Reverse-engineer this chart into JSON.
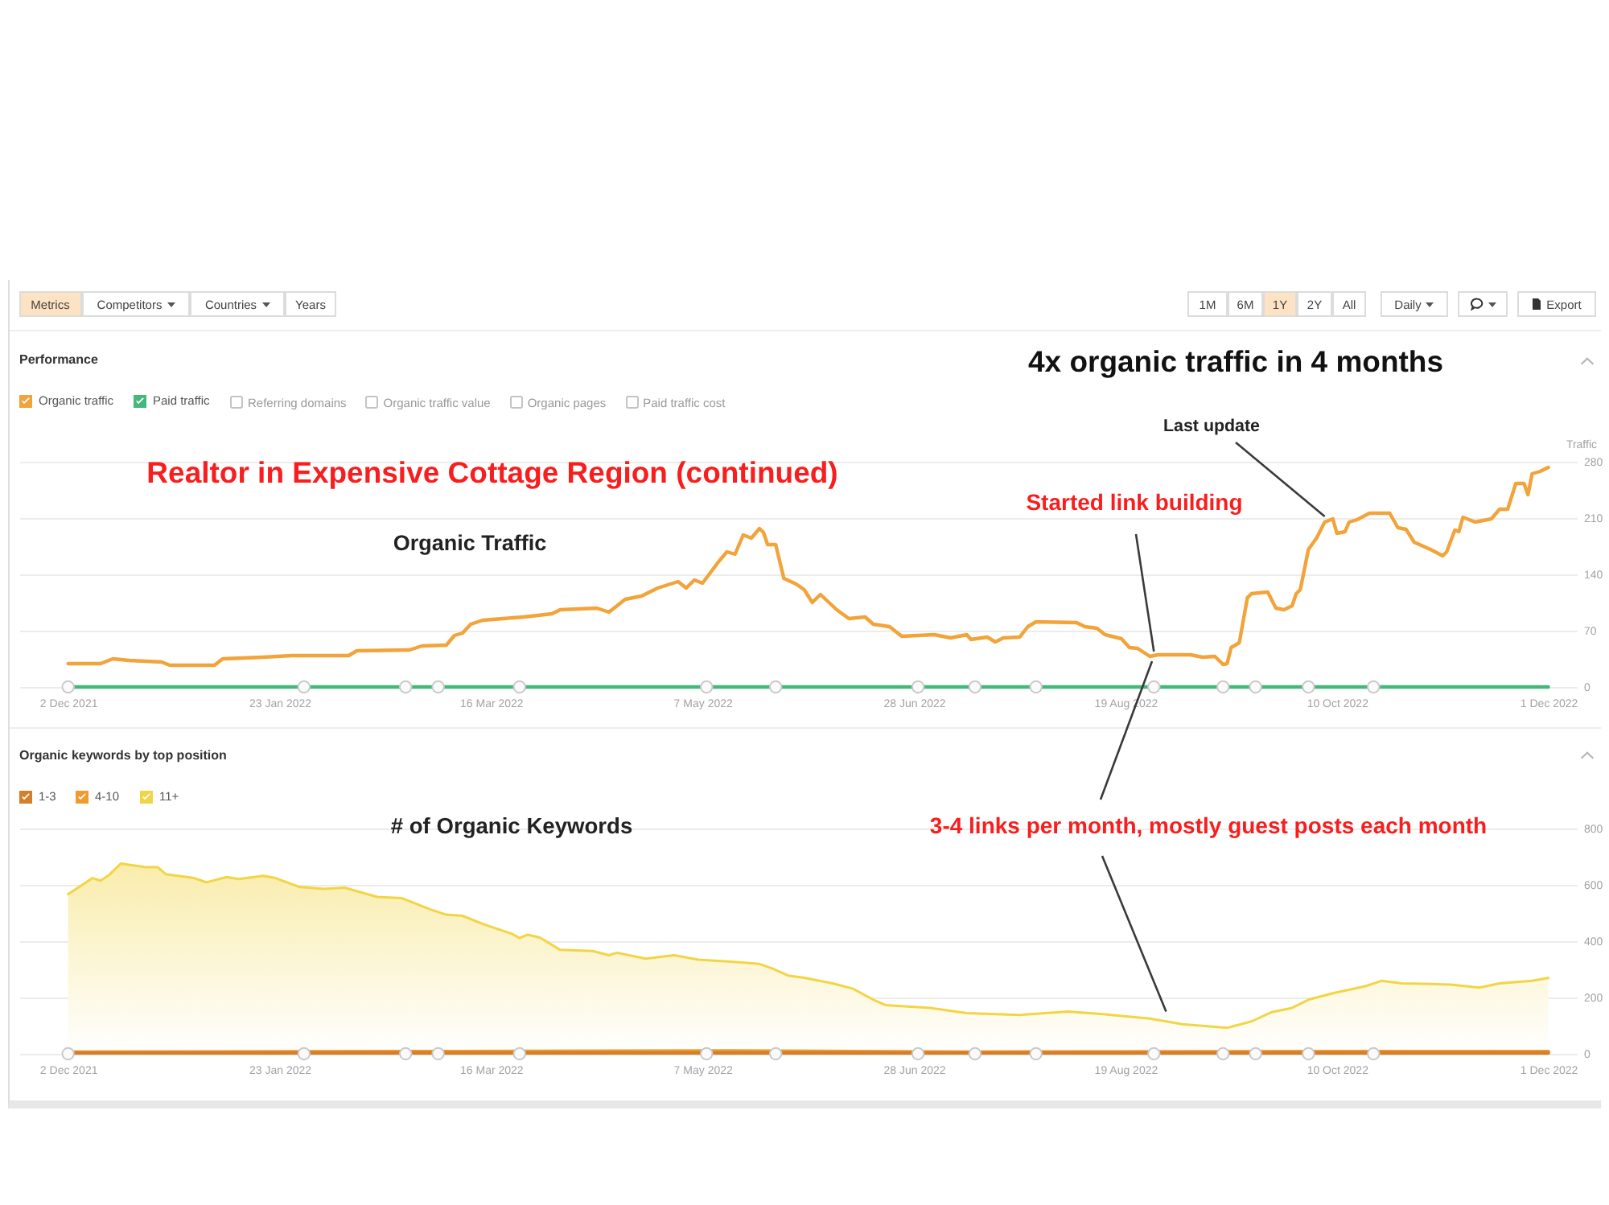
{
  "chart_data": [
    {
      "type": "other",
      "annotations": [
        "Metrics",
        "Competitors",
        "Countries",
        "Years",
        "1M",
        "6M",
        "1Y",
        "2Y",
        "All",
        "Daily",
        "Export"
      ]
    },
    {
      "type": "line",
      "title": "Performance",
      "ylabel": "Traffic",
      "series": [
        {
          "name": "Organic traffic",
          "color": "#f2a33a",
          "x": [
            "2021-12-02",
            "2021-12-10",
            "2021-12-13",
            "2021-12-17",
            "2021-12-25",
            "2021-12-27",
            "2022-01-07",
            "2022-01-09",
            "2022-01-19",
            "2022-01-26",
            "2022-02-09",
            "2022-02-11",
            "2022-02-24",
            "2022-02-27",
            "2022-03-05",
            "2022-03-07",
            "2022-03-09",
            "2022-03-11",
            "2022-03-14",
            "2022-03-19",
            "2022-03-24",
            "2022-03-31",
            "2022-04-02",
            "2022-04-11",
            "2022-04-14",
            "2022-04-18",
            "2022-04-22",
            "2022-04-26",
            "2022-05-01",
            "2022-05-03",
            "2022-05-05",
            "2022-05-07",
            "2022-05-11",
            "2022-05-13",
            "2022-05-15",
            "2022-05-17",
            "2022-05-19",
            "2022-05-21",
            "2022-05-22",
            "2022-05-23",
            "2022-05-25",
            "2022-05-27",
            "2022-05-30",
            "2022-06-01",
            "2022-06-03",
            "2022-06-05",
            "2022-06-09",
            "2022-06-12",
            "2022-06-16",
            "2022-06-18",
            "2022-06-22",
            "2022-06-25",
            "2022-07-03",
            "2022-07-07",
            "2022-07-11",
            "2022-07-12",
            "2022-07-16",
            "2022-07-18",
            "2022-07-20",
            "2022-07-24",
            "2022-07-26",
            "2022-07-28",
            "2022-08-07",
            "2022-08-09",
            "2022-08-12",
            "2022-08-14",
            "2022-08-18",
            "2022-08-20",
            "2022-08-22",
            "2022-08-25",
            "2022-08-27",
            "2022-09-04",
            "2022-09-07",
            "2022-09-10",
            "2022-09-12",
            "2022-09-13",
            "2022-09-14",
            "2022-09-16",
            "2022-09-18",
            "2022-09-19",
            "2022-09-23",
            "2022-09-25",
            "2022-09-27",
            "2022-09-29",
            "2022-09-30",
            "2022-10-01",
            "2022-10-03",
            "2022-10-05",
            "2022-10-07",
            "2022-10-09",
            "2022-10-10",
            "2022-10-12",
            "2022-10-13",
            "2022-10-15",
            "2022-10-18",
            "2022-10-23",
            "2022-10-25",
            "2022-10-27",
            "2022-10-29",
            "2022-11-02",
            "2022-11-05",
            "2022-11-06",
            "2022-11-08",
            "2022-11-09",
            "2022-11-10",
            "2022-11-13",
            "2022-11-17",
            "2022-11-19",
            "2022-11-21",
            "2022-11-23",
            "2022-11-25",
            "2022-11-26",
            "2022-11-27",
            "2022-11-29",
            "2022-12-01"
          ],
          "values": [
            29,
            29,
            35,
            33,
            31,
            27,
            27,
            35,
            37,
            39,
            39,
            45,
            46,
            51,
            52,
            64,
            67,
            78,
            83,
            85,
            87,
            91,
            96,
            98,
            93,
            109,
            113,
            123,
            131,
            123,
            133,
            129,
            156,
            168,
            165,
            189,
            185,
            197,
            192,
            177,
            177,
            135,
            128,
            121,
            105,
            115,
            96,
            85,
            87,
            78,
            75,
            63,
            65,
            61,
            65,
            59,
            62,
            56,
            61,
            62,
            75,
            81,
            80,
            75,
            73,
            65,
            60,
            49,
            48,
            38,
            40,
            40,
            37,
            38,
            28,
            29,
            49,
            55,
            111,
            116,
            118,
            98,
            96,
            101,
            116,
            121,
            171,
            185,
            205,
            209,
            191,
            193,
            205,
            208,
            216,
            216,
            198,
            196,
            180,
            171,
            163,
            168,
            195,
            193,
            211,
            205,
            209,
            221,
            221,
            253,
            253,
            239,
            265,
            268,
            273
          ]
        },
        {
          "name": "Paid traffic",
          "color": "#44b77b",
          "x": [
            "2021-12-02",
            "2022-12-01"
          ],
          "values": [
            0,
            0
          ]
        },
        {
          "type": "scatter",
          "color": "#fafafa",
          "x": [
            "2021-12-02",
            "2022-01-29",
            "2022-02-23",
            "2022-03-03",
            "2022-03-23",
            "2022-05-08",
            "2022-05-25",
            "2022-06-29",
            "2022-07-13",
            "2022-07-28",
            "2022-08-26",
            "2022-09-12",
            "2022-09-20",
            "2022-10-03",
            "2022-10-19"
          ],
          "values": [
            0,
            0,
            0,
            0,
            0,
            0,
            0,
            0,
            0,
            0,
            0,
            0,
            0,
            0,
            0
          ]
        }
      ],
      "xlim": [
        "2021-11-20",
        "2022-12-08"
      ],
      "xticks": [
        {
          "value": "2021-12-02",
          "label": "2 Dec 2021"
        },
        {
          "value": "2022-01-23",
          "label": "23 Jan 2022"
        },
        {
          "value": "2022-03-16",
          "label": "16 Mar 2022"
        },
        {
          "value": "2022-05-07",
          "label": "7 May 2022"
        },
        {
          "value": "2022-06-28",
          "label": "28 Jun 2022"
        },
        {
          "value": "2022-08-19",
          "label": "19 Aug 2022"
        },
        {
          "value": "2022-10-10",
          "label": "10 Oct 2022"
        },
        {
          "value": "2022-12-01",
          "label": "1 Dec 2022"
        }
      ],
      "ylim": [
        0,
        280
      ],
      "yticks": [
        0,
        70,
        140,
        210,
        280
      ],
      "grid": "y",
      "legend": "top left",
      "annotations": [
        "4x organic traffic in 4 months",
        "Realtor in Expensive Cottage Region (continued)",
        "Organic Traffic",
        {
          "text": "Last update",
          "x": "2022-10-07",
          "y": 212
        },
        {
          "text": "Started link building",
          "x": "2022-08-26",
          "y": 44
        },
        "Referring domains",
        "Organic traffic value",
        "Organic pages",
        "Paid traffic cost"
      ]
    },
    {
      "type": "area",
      "title": "Organic keywords by top position",
      "series": [
        {
          "name": "1-3",
          "type": "line",
          "color": "#d47f2a",
          "x": [
            "2021-12-02",
            "2022-12-01"
          ],
          "values": [
            3,
            3
          ]
        },
        {
          "name": "4-10",
          "type": "line",
          "color": "#f29a2e",
          "x": [
            "2021-12-02",
            "2022-03-09",
            "2022-05-14",
            "2022-07-11",
            "2022-10-17",
            "2022-12-01"
          ],
          "values": [
            6,
            8,
            10,
            6,
            8,
            8
          ]
        },
        {
          "name": "11+",
          "type": "area",
          "color": "#f2d544",
          "x": [
            "2021-12-02",
            "2021-12-04",
            "2021-12-08",
            "2021-12-10",
            "2021-12-12",
            "2021-12-15",
            "2021-12-21",
            "2021-12-24",
            "2021-12-26",
            "2022-01-02",
            "2022-01-05",
            "2022-01-10",
            "2022-01-13",
            "2022-01-19",
            "2022-01-22",
            "2022-01-28",
            "2022-02-03",
            "2022-02-08",
            "2022-02-16",
            "2022-02-22",
            "2022-03-01",
            "2022-03-05",
            "2022-03-09",
            "2022-03-14",
            "2022-03-21",
            "2022-03-23",
            "2022-03-25",
            "2022-03-28",
            "2022-04-02",
            "2022-04-10",
            "2022-04-14",
            "2022-04-16",
            "2022-04-23",
            "2022-04-30",
            "2022-05-06",
            "2022-05-14",
            "2022-05-21",
            "2022-05-24",
            "2022-05-28",
            "2022-06-01",
            "2022-06-08",
            "2022-06-13",
            "2022-06-18",
            "2022-06-21",
            "2022-07-02",
            "2022-07-11",
            "2022-07-24",
            "2022-08-05",
            "2022-08-14",
            "2022-08-25",
            "2022-09-02",
            "2022-09-13",
            "2022-09-19",
            "2022-09-24",
            "2022-09-29",
            "2022-10-03",
            "2022-10-09",
            "2022-10-17",
            "2022-10-21",
            "2022-10-26",
            "2022-11-07",
            "2022-11-14",
            "2022-11-19",
            "2022-11-27",
            "2022-12-01"
          ],
          "values": [
            567,
            586,
            624,
            615,
            634,
            676,
            663,
            663,
            638,
            624,
            609,
            628,
            621,
            632,
            624,
            592,
            586,
            590,
            557,
            553,
            513,
            494,
            490,
            461,
            427,
            411,
            423,
            413,
            369,
            365,
            350,
            359,
            338,
            350,
            334,
            327,
            319,
            304,
            278,
            270,
            250,
            231,
            192,
            173,
            163,
            144,
            138,
            150,
            140,
            125,
            105,
            92,
            115,
            148,
            163,
            192,
            215,
            240,
            259,
            250,
            246,
            235,
            250,
            259,
            269
          ]
        },
        {
          "type": "scatter",
          "color": "#fafafa",
          "x": [
            "2021-12-02",
            "2022-01-29",
            "2022-02-23",
            "2022-03-03",
            "2022-03-23",
            "2022-05-08",
            "2022-05-25",
            "2022-06-29",
            "2022-07-13",
            "2022-07-28",
            "2022-08-26",
            "2022-09-12",
            "2022-09-20",
            "2022-10-03",
            "2022-10-19"
          ],
          "values": [
            0,
            0,
            0,
            0,
            0,
            0,
            0,
            0,
            0,
            0,
            0,
            0,
            0,
            0,
            0
          ]
        }
      ],
      "xlim": [
        "2021-11-20",
        "2022-12-08"
      ],
      "xticks": [
        {
          "value": "2021-12-02",
          "label": "2 Dec 2021"
        },
        {
          "value": "2022-01-23",
          "label": "23 Jan 2022"
        },
        {
          "value": "2022-03-16",
          "label": "16 Mar 2022"
        },
        {
          "value": "2022-05-07",
          "label": "7 May 2022"
        },
        {
          "value": "2022-06-28",
          "label": "28 Jun 2022"
        },
        {
          "value": "2022-08-19",
          "label": "19 Aug 2022"
        },
        {
          "value": "2022-10-10",
          "label": "10 Oct 2022"
        },
        {
          "value": "2022-12-01",
          "label": "1 Dec 2022"
        }
      ],
      "ylim": [
        0,
        800
      ],
      "yticks": [
        0,
        200,
        400,
        600,
        800
      ],
      "grid": "y",
      "legend": "top left",
      "annotations": [
        "# of Organic Keywords",
        {
          "text": "3-4 links per month, mostly guest posts each month",
          "x": "2022-08-29",
          "y": 150
        }
      ]
    }
  ]
}
